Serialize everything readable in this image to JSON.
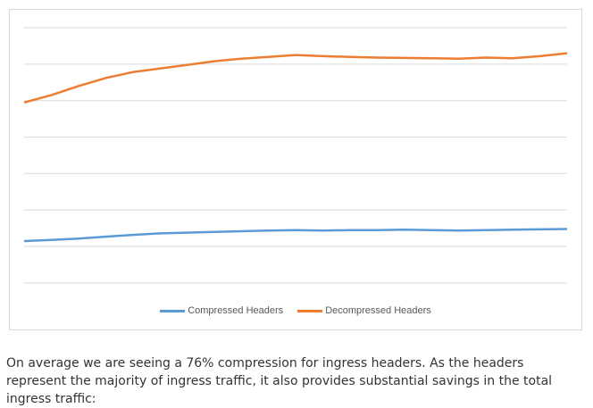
{
  "chart_data": {
    "type": "line",
    "title": "",
    "xlabel": "",
    "ylabel": "",
    "ylim": [
      0,
      7
    ],
    "grid": true,
    "legend_position": "bottom",
    "series": [
      {
        "name": "Compressed Headers",
        "color": "#5b9bd5",
        "x": [
          0,
          0.05,
          0.1,
          0.15,
          0.2,
          0.25,
          0.3,
          0.35,
          0.4,
          0.45,
          0.5,
          0.55,
          0.6,
          0.65,
          0.7,
          0.75,
          0.8,
          0.85,
          0.9,
          0.95,
          1.0
        ],
        "values": [
          1.15,
          1.18,
          1.22,
          1.27,
          1.32,
          1.36,
          1.38,
          1.4,
          1.42,
          1.44,
          1.45,
          1.44,
          1.45,
          1.45,
          1.46,
          1.45,
          1.44,
          1.45,
          1.46,
          1.47,
          1.48
        ]
      },
      {
        "name": "Decompressed Headers",
        "color": "#ed7d31",
        "x": [
          0,
          0.05,
          0.1,
          0.15,
          0.2,
          0.25,
          0.3,
          0.35,
          0.4,
          0.45,
          0.5,
          0.55,
          0.6,
          0.65,
          0.7,
          0.75,
          0.8,
          0.85,
          0.9,
          0.95,
          1.0
        ],
        "values": [
          4.95,
          5.15,
          5.4,
          5.62,
          5.78,
          5.88,
          5.98,
          6.08,
          6.15,
          6.2,
          6.25,
          6.22,
          6.2,
          6.18,
          6.17,
          6.16,
          6.15,
          6.18,
          6.16,
          6.22,
          6.3
        ]
      }
    ]
  },
  "caption": {
    "text": "On average we are seeing a 76% compression for ingress headers. As the headers represent the majority of ingress traffic, it also provides substantial savings in the total ingress traffic:"
  }
}
